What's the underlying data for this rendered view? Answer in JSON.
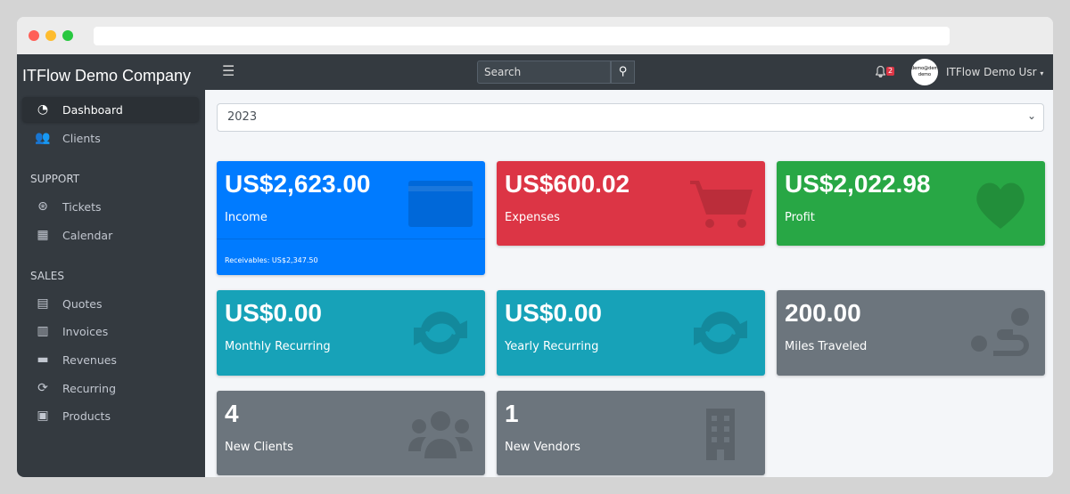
{
  "window": {
    "dots": [
      "#ff5f57",
      "#febc2e",
      "#28c840"
    ]
  },
  "sidebar": {
    "brand": "ITFlow Demo Company",
    "items": [
      {
        "label": "Dashboard",
        "icon": "tachometer-icon"
      },
      {
        "label": "Clients",
        "icon": "users-icon"
      }
    ],
    "support_header": "SUPPORT",
    "support": [
      {
        "label": "Tickets",
        "icon": "life-ring-icon"
      },
      {
        "label": "Calendar",
        "icon": "calendar-icon"
      }
    ],
    "sales_header": "SALES",
    "sales": [
      {
        "label": "Quotes",
        "icon": "file-icon"
      },
      {
        "label": "Invoices",
        "icon": "file-invoice-icon"
      },
      {
        "label": "Revenues",
        "icon": "credit-card-icon"
      },
      {
        "label": "Recurring",
        "icon": "sync-icon"
      },
      {
        "label": "Products",
        "icon": "box-icon"
      }
    ]
  },
  "topbar": {
    "search_placeholder": "Search",
    "notifications": "2",
    "avatar_text": "demo@demo demo",
    "user": "ITFlow Demo Usr"
  },
  "filter": {
    "year": "2023"
  },
  "cards": [
    {
      "value": "US$2,623.00",
      "label": "Income",
      "footer": "Receivables: US$2,347.50",
      "color": "#007bff",
      "icon": "credit-card-icon"
    },
    {
      "value": "US$600.02",
      "label": "Expenses",
      "color": "#dc3545",
      "icon": "shopping-cart-icon"
    },
    {
      "value": "US$2,022.98",
      "label": "Profit",
      "color": "#28a745",
      "icon": "heart-icon"
    },
    {
      "value": "US$0.00",
      "label": "Monthly Recurring",
      "color": "#17a2b8",
      "icon": "sync-icon"
    },
    {
      "value": "US$0.00",
      "label": "Yearly Recurring",
      "color": "#17a2b8",
      "icon": "sync-icon"
    },
    {
      "value": "200.00",
      "label": "Miles Traveled",
      "color": "#6c757d",
      "icon": "route-icon"
    },
    {
      "value": "4",
      "label": "New Clients",
      "color": "#6c757d",
      "icon": "users-icon"
    },
    {
      "value": "1",
      "label": "New Vendors",
      "color": "#6c757d",
      "icon": "building-icon"
    }
  ]
}
